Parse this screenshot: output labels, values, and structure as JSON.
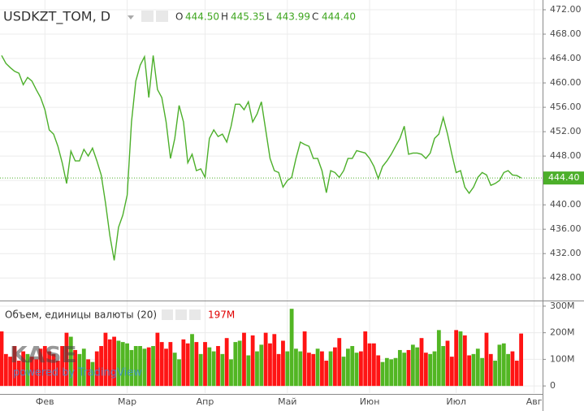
{
  "chart_data": {
    "type": "line",
    "title": "USDKZT_TOM, D",
    "ohlc": [
      {
        "key": "O",
        "value": "444.50"
      },
      {
        "key": "H",
        "value": "445.35"
      },
      {
        "key": "L",
        "value": "443.99"
      },
      {
        "key": "C",
        "value": "444.40"
      }
    ],
    "volume_title": "Объем, единицы валюты (20)",
    "watermark": {
      "logo": "KASE",
      "text": "powered by TradingView"
    },
    "categories": [
      null,
      null,
      null,
      null,
      null,
      null,
      null,
      null,
      null,
      null,
      "Фев",
      null,
      null,
      null,
      null,
      null,
      null,
      null,
      null,
      null,
      null,
      null,
      null,
      null,
      null,
      null,
      null,
      null,
      null,
      "Мар",
      null,
      null,
      null,
      null,
      null,
      null,
      null,
      null,
      null,
      null,
      null,
      null,
      null,
      null,
      null,
      null,
      null,
      "Апр",
      null,
      null,
      null,
      null,
      null,
      null,
      null,
      null,
      null,
      null,
      null,
      null,
      null,
      null,
      null,
      null,
      null,
      null,
      "Май",
      null,
      null,
      null,
      null,
      null,
      null,
      null,
      null,
      null,
      null,
      null,
      null,
      null,
      null,
      null,
      null,
      null,
      null,
      "Июн",
      null,
      null,
      null,
      null,
      null,
      null,
      null,
      null,
      null,
      null,
      null,
      null,
      null,
      null,
      null,
      null,
      null,
      null,
      null,
      "Июл",
      null,
      null,
      null,
      null,
      null,
      null,
      null,
      null,
      null,
      null,
      null,
      null,
      null,
      null,
      null,
      null,
      null,
      "Авг"
    ],
    "series": [
      {
        "name": "USDKZT_TOM",
        "color": "#4caf2a",
        "values": [
          464.5,
          463.2,
          462.5,
          461.9,
          461.6,
          459.7,
          460.9,
          460.3,
          458.9,
          457.6,
          455.6,
          452.3,
          451.6,
          449.6,
          446.9,
          443.5,
          448.8,
          447.2,
          447.2,
          449.1,
          448.0,
          449.3,
          447.2,
          444.9,
          440.3,
          434.9,
          430.9,
          436.3,
          438.3,
          441.6,
          453.6,
          460.3,
          462.9,
          464.3,
          457.6,
          464.5,
          458.9,
          457.6,
          453.6,
          447.6,
          450.9,
          456.3,
          453.6,
          446.9,
          448.3,
          445.6,
          445.9,
          444.5,
          450.9,
          452.3,
          451.2,
          451.6,
          450.3,
          452.9,
          456.5,
          456.5,
          455.6,
          456.9,
          453.6,
          454.9,
          456.9,
          452.3,
          447.6,
          445.6,
          445.3,
          442.9,
          444.0,
          444.5,
          447.6,
          450.3,
          449.9,
          449.6,
          447.6,
          447.6,
          445.6,
          442.0,
          445.6,
          445.3,
          444.5,
          445.6,
          447.6,
          447.6,
          448.9,
          448.7,
          448.5,
          447.6,
          446.3,
          444.3,
          446.3,
          447.2,
          448.3,
          449.6,
          450.9,
          452.9,
          448.3,
          448.5,
          448.5,
          448.3,
          447.6,
          448.5,
          450.9,
          451.6,
          454.3,
          451.6,
          448.3,
          445.3,
          445.6,
          442.9,
          441.9,
          442.9,
          444.5,
          445.3,
          444.9,
          443.2,
          443.5,
          444.0,
          445.3,
          445.6,
          444.9,
          444.8,
          444.4,
          null,
          null,
          null
        ],
        "value_labels": [
          null,
          null,
          null,
          null,
          null,
          null,
          null,
          null,
          null,
          null,
          null,
          null,
          null,
          null,
          null,
          null,
          null,
          null,
          null,
          null,
          null,
          null,
          null,
          null,
          null,
          null,
          null,
          null,
          null,
          null,
          null,
          null,
          null,
          null,
          null,
          null,
          null,
          null,
          null,
          null,
          null,
          null,
          null,
          null,
          null,
          null,
          null,
          null,
          null,
          null,
          null,
          null,
          null,
          null,
          null,
          null,
          null,
          null,
          null,
          null,
          null,
          null,
          null,
          null,
          null,
          null,
          null,
          null,
          null,
          null,
          null,
          null,
          null,
          null,
          null,
          null,
          null,
          null,
          null,
          null,
          null,
          null,
          null,
          null,
          null,
          null,
          null,
          null,
          null,
          null,
          null,
          null,
          null,
          null,
          null,
          null,
          null,
          null,
          null,
          null,
          null,
          null,
          null,
          null,
          null,
          null,
          null,
          null,
          null,
          null,
          null,
          null,
          null,
          null,
          null,
          null,
          null,
          null,
          null,
          null,
          "444.40",
          null,
          null,
          null
        ]
      },
      {
        "name": "Объем",
        "type": "bar",
        "axis": "y2",
        "up_color": "#52b623",
        "down_color": "#ff1414",
        "values": [
          205,
          120,
          110,
          150,
          95,
          130,
          120,
          110,
          100,
          140,
          150,
          130,
          120,
          95,
          150,
          200,
          185,
          135,
          120,
          140,
          100,
          90,
          130,
          150,
          200,
          175,
          185,
          170,
          165,
          160,
          135,
          150,
          150,
          140,
          145,
          150,
          200,
          165,
          140,
          165,
          125,
          100,
          175,
          160,
          195,
          165,
          120,
          165,
          145,
          130,
          150,
          120,
          180,
          100,
          165,
          170,
          200,
          115,
          190,
          130,
          155,
          200,
          160,
          195,
          120,
          170,
          130,
          290,
          140,
          130,
          205,
          125,
          120,
          140,
          130,
          95,
          130,
          145,
          180,
          110,
          140,
          150,
          125,
          130,
          205,
          160,
          160,
          115,
          90,
          105,
          100,
          105,
          135,
          125,
          135,
          155,
          145,
          180,
          125,
          120,
          130,
          210,
          150,
          170,
          110,
          210,
          205,
          190,
          115,
          120,
          140,
          105,
          200,
          120,
          95,
          155,
          160,
          120,
          130,
          95,
          197,
          null,
          null,
          null
        ],
        "value_labels": [
          null,
          null,
          null,
          null,
          null,
          null,
          null,
          null,
          null,
          null,
          null,
          null,
          null,
          null,
          null,
          null,
          null,
          null,
          null,
          null,
          null,
          null,
          null,
          null,
          null,
          null,
          null,
          null,
          null,
          null,
          null,
          null,
          null,
          null,
          null,
          null,
          null,
          null,
          null,
          null,
          null,
          null,
          null,
          null,
          null,
          null,
          null,
          null,
          null,
          null,
          null,
          null,
          null,
          null,
          null,
          null,
          null,
          null,
          null,
          null,
          null,
          null,
          null,
          null,
          null,
          null,
          null,
          null,
          null,
          null,
          null,
          null,
          null,
          null,
          null,
          null,
          null,
          null,
          null,
          null,
          null,
          null,
          null,
          null,
          null,
          null,
          null,
          null,
          null,
          null,
          null,
          null,
          null,
          null,
          null,
          null,
          null,
          null,
          null,
          null,
          null,
          null,
          null,
          null,
          null,
          null,
          null,
          null,
          null,
          null,
          null,
          null,
          null,
          null,
          null,
          null,
          null,
          null,
          null,
          null,
          "197M",
          null,
          null,
          null
        ]
      }
    ],
    "ylim": [
      424.3,
      473.6
    ],
    "yticks": [
      {
        "value": 428,
        "label": "428.00"
      },
      {
        "value": 432,
        "label": "432.00"
      },
      {
        "value": 436,
        "label": "436.00"
      },
      {
        "value": 440,
        "label": "440.00"
      },
      {
        "value": 444,
        "label": "444.00"
      },
      {
        "value": 448,
        "label": "448.00"
      },
      {
        "value": 452,
        "label": "452.00"
      },
      {
        "value": 456,
        "label": "456.00"
      },
      {
        "value": 460,
        "label": "460.00"
      },
      {
        "value": 464,
        "label": "464.00"
      },
      {
        "value": 468,
        "label": "468.00"
      },
      {
        "value": 472,
        "label": "472.00"
      }
    ],
    "y2lim": [
      -27,
      318
    ],
    "y2ticks": [
      0,
      {
        "value": 100,
        "label": "100M"
      },
      {
        "value": 200,
        "label": "200M"
      },
      {
        "value": 300,
        "label": "300M"
      }
    ],
    "grid": true
  }
}
